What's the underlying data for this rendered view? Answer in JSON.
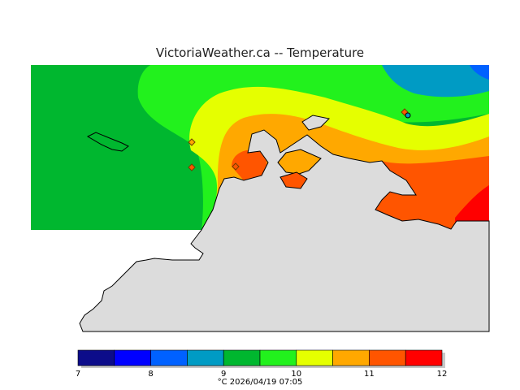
{
  "map": {
    "title": "VictoriaWeather.ca -- Temperature",
    "caption": "°C  2026/04/19 07:05",
    "legend": {
      "ticks": [
        "7",
        "8",
        "9",
        "10",
        "11",
        "12"
      ],
      "bands": [
        {
          "range": "7–7.5",
          "color": "#0c0c8a"
        },
        {
          "range": "7.5–8",
          "color": "#0000ff"
        },
        {
          "range": "8–8.5",
          "color": "#0061ff"
        },
        {
          "range": "8.5–9",
          "color": "#009bc4"
        },
        {
          "range": "9–9.5",
          "color": "#00b72f"
        },
        {
          "range": "9.5–10",
          "color": "#22f11d"
        },
        {
          "range": "10–10.5",
          "color": "#e5ff00"
        },
        {
          "range": "10.5–11",
          "color": "#ffa800"
        },
        {
          "range": "11–11.5",
          "color": "#ff5500"
        },
        {
          "range": "11.5–12",
          "color": "#ff0000"
        }
      ]
    },
    "land_color": "#dcdcdc",
    "station_marker": "diamond-icon"
  }
}
